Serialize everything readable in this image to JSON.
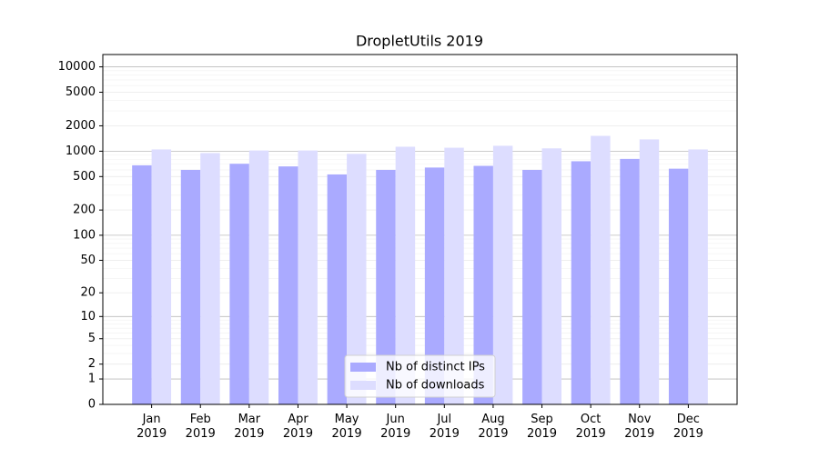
{
  "chart_data": {
    "type": "bar",
    "title": "DropletUtils 2019",
    "categories": [
      [
        "Jan",
        "2019"
      ],
      [
        "Feb",
        "2019"
      ],
      [
        "Mar",
        "2019"
      ],
      [
        "Apr",
        "2019"
      ],
      [
        "May",
        "2019"
      ],
      [
        "Jun",
        "2019"
      ],
      [
        "Jul",
        "2019"
      ],
      [
        "Aug",
        "2019"
      ],
      [
        "Sep",
        "2019"
      ],
      [
        "Oct",
        "2019"
      ],
      [
        "Nov",
        "2019"
      ],
      [
        "Dec",
        "2019"
      ]
    ],
    "series": [
      {
        "name": "Nb of distinct IPs",
        "color": "#aaaaff",
        "values": [
          680,
          600,
          710,
          660,
          530,
          600,
          640,
          670,
          600,
          760,
          810,
          620
        ]
      },
      {
        "name": "Nb of downloads",
        "color": "#ddddff",
        "values": [
          1050,
          950,
          1020,
          1020,
          930,
          1130,
          1100,
          1160,
          1080,
          1520,
          1380,
          1050
        ]
      }
    ],
    "yscale": "symlog",
    "ylim": [
      0,
      14000
    ],
    "yticks": [
      0,
      1,
      2,
      5,
      10,
      20,
      50,
      100,
      200,
      500,
      1000,
      2000,
      5000,
      10000
    ],
    "grid": true,
    "legend": "lower center"
  }
}
